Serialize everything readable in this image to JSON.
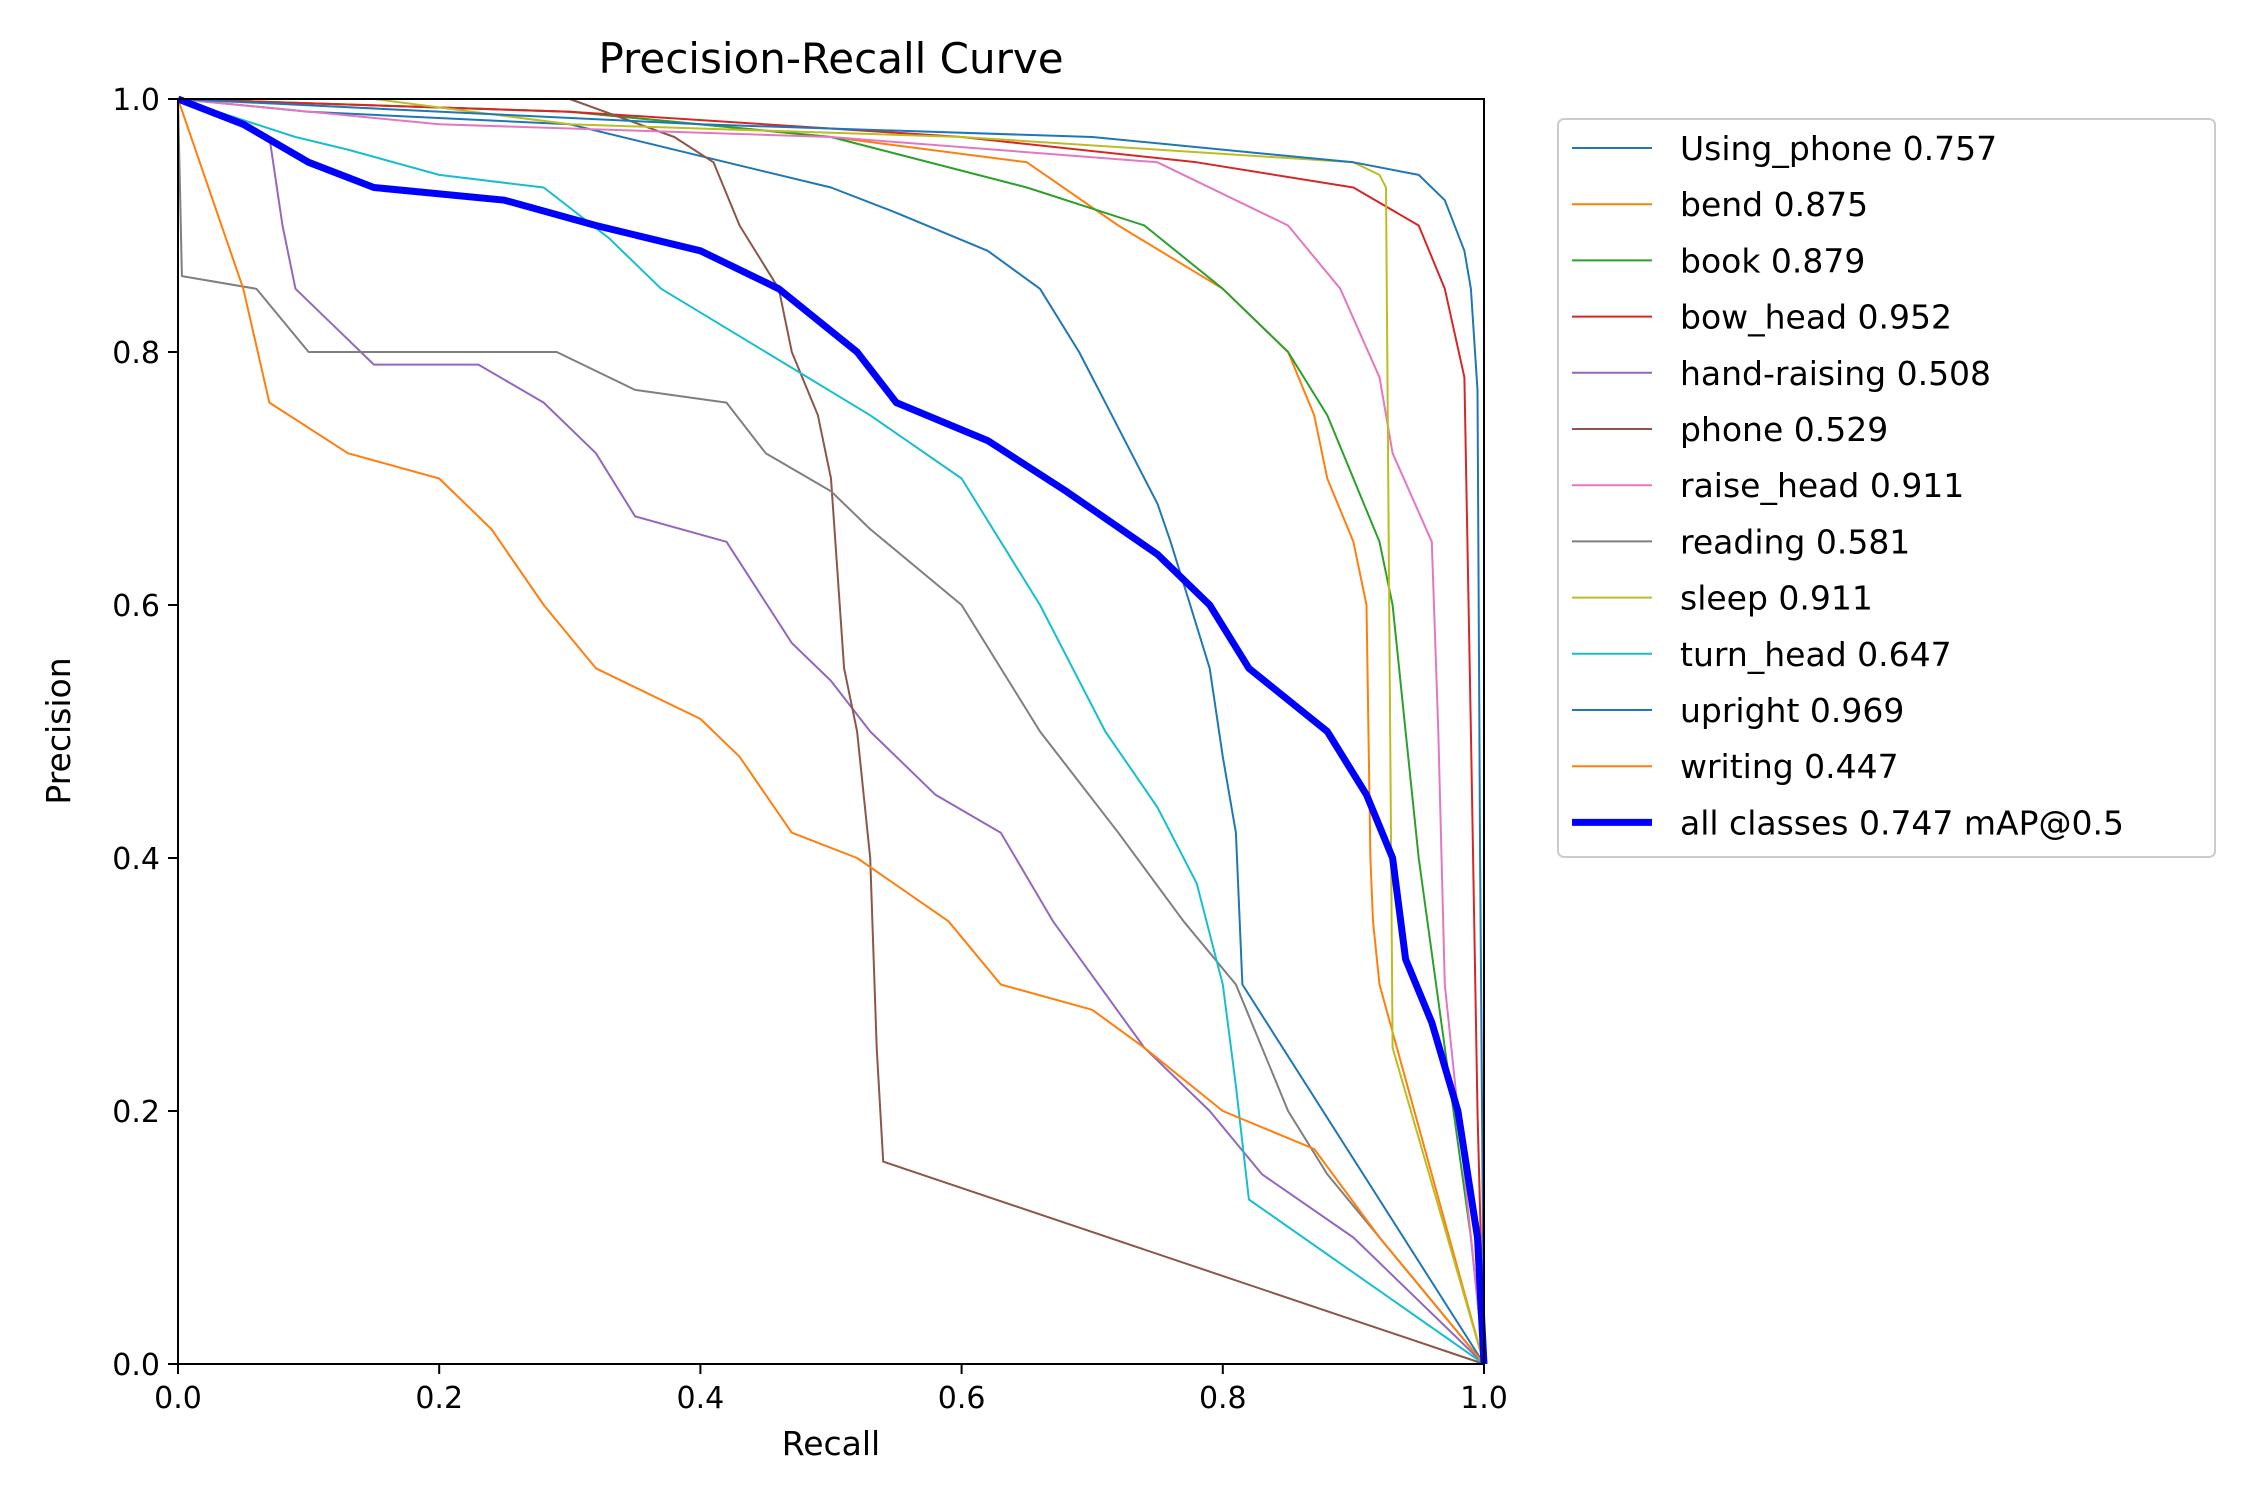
{
  "chart_data": {
    "type": "line",
    "title": "Precision-Recall Curve",
    "xlabel": "Recall",
    "ylabel": "Precision",
    "xlim": [
      0,
      1
    ],
    "ylim": [
      0,
      1
    ],
    "xticks": [
      "0.0",
      "0.2",
      "0.4",
      "0.6",
      "0.8",
      "1.0"
    ],
    "yticks": [
      "0.0",
      "0.2",
      "0.4",
      "0.6",
      "0.8",
      "1.0"
    ],
    "grid": false,
    "legend_position": "outside-right",
    "series": [
      {
        "name": "Using_phone 0.757",
        "color": "#1f77b4",
        "width": 1,
        "points": [
          [
            0,
            1
          ],
          [
            0.1,
            0.99
          ],
          [
            0.3,
            0.98
          ],
          [
            0.42,
            0.95
          ],
          [
            0.5,
            0.93
          ],
          [
            0.55,
            0.91
          ],
          [
            0.62,
            0.88
          ],
          [
            0.66,
            0.85
          ],
          [
            0.69,
            0.8
          ],
          [
            0.71,
            0.76
          ],
          [
            0.73,
            0.72
          ],
          [
            0.75,
            0.68
          ],
          [
            0.76,
            0.65
          ],
          [
            0.775,
            0.6
          ],
          [
            0.79,
            0.55
          ],
          [
            0.8,
            0.48
          ],
          [
            0.81,
            0.42
          ],
          [
            0.815,
            0.3
          ],
          [
            1,
            0
          ]
        ]
      },
      {
        "name": "bend 0.875",
        "color": "#ff7f0e",
        "width": 1,
        "points": [
          [
            0,
            1
          ],
          [
            0.3,
            0.99
          ],
          [
            0.5,
            0.97
          ],
          [
            0.65,
            0.95
          ],
          [
            0.72,
            0.9
          ],
          [
            0.8,
            0.85
          ],
          [
            0.85,
            0.8
          ],
          [
            0.87,
            0.75
          ],
          [
            0.88,
            0.7
          ],
          [
            0.9,
            0.65
          ],
          [
            0.91,
            0.6
          ],
          [
            0.913,
            0.4
          ],
          [
            0.915,
            0.35
          ],
          [
            0.92,
            0.3
          ],
          [
            1,
            0
          ]
        ]
      },
      {
        "name": "book 0.879",
        "color": "#2ca02c",
        "width": 1,
        "points": [
          [
            0,
            1
          ],
          [
            0.3,
            0.99
          ],
          [
            0.5,
            0.97
          ],
          [
            0.65,
            0.93
          ],
          [
            0.74,
            0.9
          ],
          [
            0.8,
            0.85
          ],
          [
            0.85,
            0.8
          ],
          [
            0.88,
            0.75
          ],
          [
            0.9,
            0.7
          ],
          [
            0.92,
            0.65
          ],
          [
            0.93,
            0.6
          ],
          [
            0.94,
            0.5
          ],
          [
            0.95,
            0.4
          ],
          [
            0.97,
            0.25
          ],
          [
            0.99,
            0.1
          ],
          [
            1,
            0
          ]
        ]
      },
      {
        "name": "bow_head 0.952",
        "color": "#d62728",
        "width": 1,
        "points": [
          [
            0,
            1
          ],
          [
            0.3,
            0.99
          ],
          [
            0.6,
            0.97
          ],
          [
            0.78,
            0.95
          ],
          [
            0.9,
            0.93
          ],
          [
            0.95,
            0.9
          ],
          [
            0.97,
            0.85
          ],
          [
            0.985,
            0.78
          ],
          [
            0.99,
            0.5
          ],
          [
            0.995,
            0.2
          ],
          [
            1,
            0
          ]
        ]
      },
      {
        "name": "hand-raising 0.508",
        "color": "#9467bd",
        "width": 1,
        "points": [
          [
            0,
            1
          ],
          [
            0.07,
            0.97
          ],
          [
            0.08,
            0.9
          ],
          [
            0.09,
            0.85
          ],
          [
            0.12,
            0.82
          ],
          [
            0.15,
            0.79
          ],
          [
            0.23,
            0.79
          ],
          [
            0.28,
            0.76
          ],
          [
            0.32,
            0.72
          ],
          [
            0.35,
            0.67
          ],
          [
            0.42,
            0.65
          ],
          [
            0.47,
            0.57
          ],
          [
            0.5,
            0.54
          ],
          [
            0.53,
            0.5
          ],
          [
            0.58,
            0.45
          ],
          [
            0.63,
            0.42
          ],
          [
            0.67,
            0.35
          ],
          [
            0.74,
            0.25
          ],
          [
            0.79,
            0.2
          ],
          [
            0.83,
            0.15
          ],
          [
            0.9,
            0.1
          ],
          [
            1,
            0
          ]
        ]
      },
      {
        "name": "phone 0.529",
        "color": "#8c564b",
        "width": 1,
        "points": [
          [
            0,
            1
          ],
          [
            0.3,
            1
          ],
          [
            0.38,
            0.97
          ],
          [
            0.41,
            0.95
          ],
          [
            0.43,
            0.9
          ],
          [
            0.46,
            0.85
          ],
          [
            0.47,
            0.8
          ],
          [
            0.49,
            0.75
          ],
          [
            0.5,
            0.7
          ],
          [
            0.51,
            0.55
          ],
          [
            0.52,
            0.5
          ],
          [
            0.53,
            0.4
          ],
          [
            0.535,
            0.25
          ],
          [
            0.54,
            0.16
          ],
          [
            1,
            0
          ]
        ]
      },
      {
        "name": "raise_head 0.911",
        "color": "#e377c2",
        "width": 1,
        "points": [
          [
            0,
            1
          ],
          [
            0.2,
            0.98
          ],
          [
            0.5,
            0.97
          ],
          [
            0.75,
            0.95
          ],
          [
            0.85,
            0.9
          ],
          [
            0.89,
            0.85
          ],
          [
            0.92,
            0.78
          ],
          [
            0.93,
            0.72
          ],
          [
            0.96,
            0.65
          ],
          [
            0.965,
            0.5
          ],
          [
            0.97,
            0.3
          ],
          [
            0.98,
            0.2
          ],
          [
            1,
            0
          ]
        ]
      },
      {
        "name": "reading 0.581",
        "color": "#7f7f7f",
        "width": 1,
        "points": [
          [
            0,
            1
          ],
          [
            0.003,
            0.86
          ],
          [
            0.06,
            0.85
          ],
          [
            0.1,
            0.8
          ],
          [
            0.29,
            0.8
          ],
          [
            0.35,
            0.77
          ],
          [
            0.42,
            0.76
          ],
          [
            0.45,
            0.72
          ],
          [
            0.5,
            0.69
          ],
          [
            0.53,
            0.66
          ],
          [
            0.6,
            0.6
          ],
          [
            0.66,
            0.5
          ],
          [
            0.72,
            0.42
          ],
          [
            0.77,
            0.35
          ],
          [
            0.81,
            0.3
          ],
          [
            0.85,
            0.2
          ],
          [
            0.88,
            0.15
          ],
          [
            1,
            0
          ]
        ]
      },
      {
        "name": "sleep 0.911",
        "color": "#bcbd22",
        "width": 1,
        "points": [
          [
            0,
            1
          ],
          [
            0.15,
            1
          ],
          [
            0.3,
            0.98
          ],
          [
            0.6,
            0.97
          ],
          [
            0.75,
            0.96
          ],
          [
            0.9,
            0.95
          ],
          [
            0.92,
            0.94
          ],
          [
            0.925,
            0.93
          ],
          [
            0.93,
            0.25
          ],
          [
            1,
            0
          ]
        ]
      },
      {
        "name": "turn_head 0.647",
        "color": "#17becf",
        "width": 1,
        "points": [
          [
            0,
            1
          ],
          [
            0.09,
            0.97
          ],
          [
            0.13,
            0.96
          ],
          [
            0.2,
            0.94
          ],
          [
            0.28,
            0.93
          ],
          [
            0.33,
            0.89
          ],
          [
            0.37,
            0.85
          ],
          [
            0.45,
            0.8
          ],
          [
            0.53,
            0.75
          ],
          [
            0.6,
            0.7
          ],
          [
            0.63,
            0.65
          ],
          [
            0.66,
            0.6
          ],
          [
            0.71,
            0.5
          ],
          [
            0.75,
            0.44
          ],
          [
            0.78,
            0.38
          ],
          [
            0.8,
            0.3
          ],
          [
            0.81,
            0.22
          ],
          [
            0.82,
            0.13
          ],
          [
            1,
            0
          ]
        ]
      },
      {
        "name": "upright 0.969",
        "color": "#1f77b4",
        "width": 1,
        "points": [
          [
            0,
            1
          ],
          [
            0.4,
            0.98
          ],
          [
            0.7,
            0.97
          ],
          [
            0.9,
            0.95
          ],
          [
            0.95,
            0.94
          ],
          [
            0.97,
            0.92
          ],
          [
            0.985,
            0.88
          ],
          [
            0.99,
            0.85
          ],
          [
            0.995,
            0.77
          ],
          [
            0.997,
            0.4
          ],
          [
            1,
            0
          ]
        ]
      },
      {
        "name": "writing 0.447",
        "color": "#ff7f0e",
        "width": 1,
        "points": [
          [
            0,
            1
          ],
          [
            0.05,
            0.85
          ],
          [
            0.07,
            0.76
          ],
          [
            0.13,
            0.72
          ],
          [
            0.2,
            0.7
          ],
          [
            0.24,
            0.66
          ],
          [
            0.28,
            0.6
          ],
          [
            0.32,
            0.55
          ],
          [
            0.4,
            0.51
          ],
          [
            0.43,
            0.48
          ],
          [
            0.47,
            0.42
          ],
          [
            0.52,
            0.4
          ],
          [
            0.59,
            0.35
          ],
          [
            0.63,
            0.3
          ],
          [
            0.7,
            0.28
          ],
          [
            0.74,
            0.25
          ],
          [
            0.8,
            0.2
          ],
          [
            0.87,
            0.17
          ],
          [
            0.92,
            0.1
          ],
          [
            1,
            0
          ]
        ]
      },
      {
        "name": "all classes 0.747 mAP@0.5",
        "color": "#0000ff",
        "width": 3,
        "points": [
          [
            0,
            1
          ],
          [
            0.05,
            0.98
          ],
          [
            0.1,
            0.95
          ],
          [
            0.15,
            0.93
          ],
          [
            0.25,
            0.92
          ],
          [
            0.32,
            0.9
          ],
          [
            0.4,
            0.88
          ],
          [
            0.46,
            0.85
          ],
          [
            0.52,
            0.8
          ],
          [
            0.55,
            0.76
          ],
          [
            0.62,
            0.73
          ],
          [
            0.68,
            0.69
          ],
          [
            0.75,
            0.64
          ],
          [
            0.79,
            0.6
          ],
          [
            0.82,
            0.55
          ],
          [
            0.88,
            0.5
          ],
          [
            0.91,
            0.45
          ],
          [
            0.93,
            0.4
          ],
          [
            0.94,
            0.32
          ],
          [
            0.96,
            0.27
          ],
          [
            0.98,
            0.2
          ],
          [
            0.995,
            0.1
          ],
          [
            1,
            0
          ]
        ]
      }
    ]
  }
}
